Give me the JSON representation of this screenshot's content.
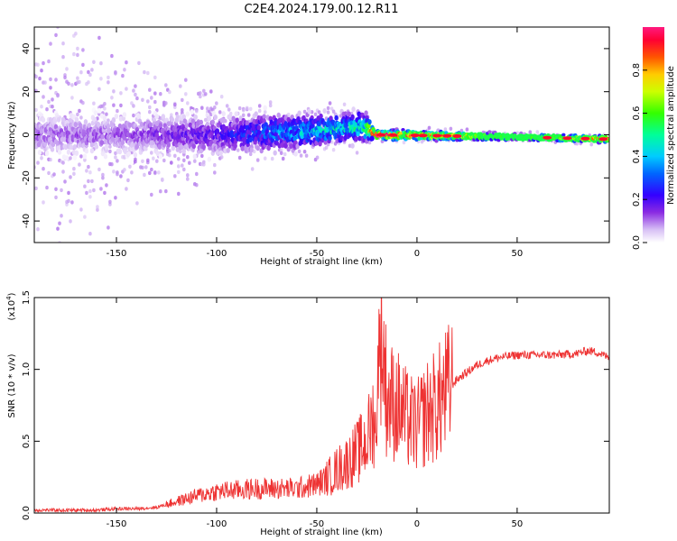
{
  "title": "C2E4.2024.179.00.12.R11",
  "colors": {
    "snr_line": "#ee3333",
    "spectrogram_low": "#b07ce8",
    "spectrogram_mid": "#3a12f0"
  },
  "chart_data": [
    {
      "type": "heatmap",
      "title": "C2E4.2024.179.00.12.R11",
      "xlabel": "Height of straight line (km)",
      "ylabel": "Frequency (Hz)",
      "xlim": [
        -191,
        96
      ],
      "ylim": [
        -50,
        50
      ],
      "xticks": [
        -150,
        -100,
        -50,
        0,
        50
      ],
      "yticks": [
        -40,
        -20,
        0,
        20,
        40
      ],
      "colorbar": {
        "label": "Normalized spectral amplitude",
        "range": [
          0,
          1
        ],
        "ticks": [
          0.0,
          0.2,
          0.4,
          0.6,
          0.8
        ],
        "tick_labels": [
          "0.0",
          "0.2",
          "0.4",
          "0.6",
          "0.8"
        ]
      },
      "band_profile": [
        {
          "height_km": -190,
          "center_hz": 0,
          "halfwidth_hz": 45,
          "peak_amplitude": 0.12
        },
        {
          "height_km": -150,
          "center_hz": 0,
          "halfwidth_hz": 30,
          "peak_amplitude": 0.12
        },
        {
          "height_km": -100,
          "center_hz": 0,
          "halfwidth_hz": 15,
          "peak_amplitude": 0.2
        },
        {
          "height_km": -50,
          "center_hz": 2,
          "halfwidth_hz": 10,
          "peak_amplitude": 0.45
        },
        {
          "height_km": -27,
          "center_hz": 4,
          "halfwidth_hz": 10,
          "peak_amplitude": 0.5
        },
        {
          "height_km": -20,
          "center_hz": 0,
          "halfwidth_hz": 3,
          "peak_amplitude": 1.0
        },
        {
          "height_km": 50,
          "center_hz": -1,
          "halfwidth_hz": 2,
          "peak_amplitude": 0.5
        },
        {
          "height_km": 95,
          "center_hz": -2,
          "halfwidth_hz": 2,
          "peak_amplitude": 0.8
        }
      ]
    },
    {
      "type": "line",
      "title": "",
      "xlabel": "Height of straight line (km)",
      "ylabel": "SNR (10 * v/v)",
      "y_multiplier_label": "(x10",
      "y_multiplier_exponent": "4",
      "xlim": [
        -191,
        96
      ],
      "ylim": [
        0,
        1.5
      ],
      "xticks": [
        -150,
        -100,
        -50,
        0,
        50
      ],
      "yticks": [
        0.0,
        0.5,
        1.0,
        1.5
      ],
      "ytick_labels": [
        "0.0",
        "0.5",
        "1.0",
        "1.5"
      ],
      "series": [
        {
          "name": "SNR",
          "x": [
            -191,
            -180,
            -170,
            -160,
            -150,
            -140,
            -130,
            -125,
            -120,
            -110,
            -100,
            -90,
            -80,
            -70,
            -60,
            -50,
            -45,
            -40,
            -35,
            -30,
            -25,
            -20,
            -19,
            -15,
            -10,
            -5,
            0,
            5,
            10,
            15,
            20,
            25,
            30,
            35,
            40,
            50,
            60,
            70,
            80,
            85,
            90,
            96
          ],
          "values": [
            0.02,
            0.02,
            0.02,
            0.02,
            0.03,
            0.03,
            0.04,
            0.06,
            0.08,
            0.12,
            0.15,
            0.16,
            0.17,
            0.17,
            0.17,
            0.2,
            0.24,
            0.3,
            0.35,
            0.42,
            0.5,
            0.75,
            1.5,
            0.8,
            0.75,
            0.65,
            0.6,
            0.7,
            0.75,
            0.85,
            0.93,
            0.98,
            1.03,
            1.06,
            1.08,
            1.1,
            1.1,
            1.1,
            1.11,
            1.13,
            1.12,
            1.08
          ]
        }
      ]
    }
  ]
}
